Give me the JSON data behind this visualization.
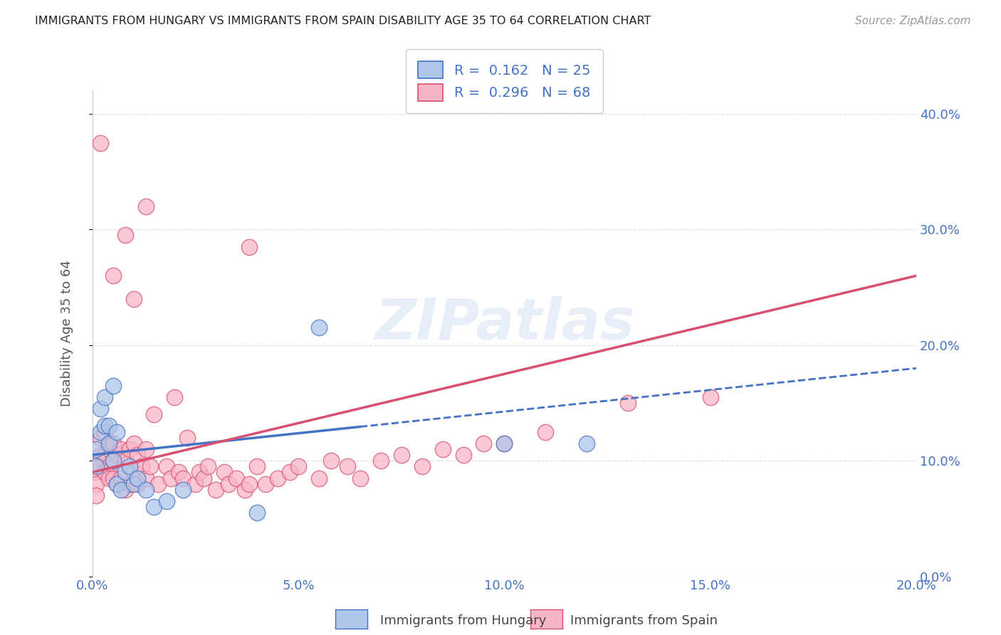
{
  "title": "IMMIGRANTS FROM HUNGARY VS IMMIGRANTS FROM SPAIN DISABILITY AGE 35 TO 64 CORRELATION CHART",
  "source": "Source: ZipAtlas.com",
  "ylabel": "Disability Age 35 to 64",
  "legend_label1": "Immigrants from Hungary",
  "legend_label2": "Immigrants from Spain",
  "r1": 0.162,
  "n1": 25,
  "r2": 0.296,
  "n2": 68,
  "xlim": [
    0.0,
    0.2
  ],
  "ylim": [
    0.0,
    0.42
  ],
  "xticks": [
    0.0,
    0.05,
    0.1,
    0.15,
    0.2
  ],
  "yticks": [
    0.0,
    0.1,
    0.2,
    0.3,
    0.4
  ],
  "color_hungary": "#aec6e8",
  "color_spain": "#f7b6c8",
  "trendline_hungary": "#4472c4",
  "trendline_spain": "#d94f70",
  "hungary_x": [
    0.001,
    0.001,
    0.002,
    0.002,
    0.003,
    0.003,
    0.004,
    0.004,
    0.005,
    0.005,
    0.006,
    0.006,
    0.007,
    0.008,
    0.009,
    0.01,
    0.011,
    0.013,
    0.015,
    0.018,
    0.022,
    0.04,
    0.055,
    0.1,
    0.12
  ],
  "hungary_y": [
    0.11,
    0.095,
    0.145,
    0.125,
    0.155,
    0.13,
    0.13,
    0.115,
    0.1,
    0.165,
    0.125,
    0.08,
    0.075,
    0.09,
    0.095,
    0.08,
    0.085,
    0.075,
    0.06,
    0.065,
    0.075,
    0.055,
    0.215,
    0.115,
    0.115
  ],
  "spain_x": [
    0.001,
    0.001,
    0.001,
    0.002,
    0.002,
    0.002,
    0.003,
    0.003,
    0.003,
    0.004,
    0.004,
    0.004,
    0.005,
    0.005,
    0.005,
    0.006,
    0.006,
    0.007,
    0.007,
    0.008,
    0.008,
    0.009,
    0.009,
    0.01,
    0.01,
    0.011,
    0.011,
    0.012,
    0.013,
    0.013,
    0.014,
    0.015,
    0.016,
    0.018,
    0.019,
    0.02,
    0.021,
    0.022,
    0.023,
    0.025,
    0.026,
    0.027,
    0.028,
    0.03,
    0.032,
    0.033,
    0.035,
    0.037,
    0.038,
    0.04,
    0.042,
    0.045,
    0.048,
    0.05,
    0.055,
    0.058,
    0.062,
    0.065,
    0.07,
    0.075,
    0.08,
    0.085,
    0.09,
    0.095,
    0.1,
    0.11,
    0.13,
    0.15
  ],
  "spain_y": [
    0.09,
    0.08,
    0.07,
    0.12,
    0.105,
    0.095,
    0.125,
    0.105,
    0.09,
    0.11,
    0.095,
    0.085,
    0.115,
    0.1,
    0.085,
    0.105,
    0.08,
    0.11,
    0.085,
    0.1,
    0.075,
    0.11,
    0.08,
    0.115,
    0.09,
    0.105,
    0.08,
    0.095,
    0.11,
    0.085,
    0.095,
    0.14,
    0.08,
    0.095,
    0.085,
    0.155,
    0.09,
    0.085,
    0.12,
    0.08,
    0.09,
    0.085,
    0.095,
    0.075,
    0.09,
    0.08,
    0.085,
    0.075,
    0.08,
    0.095,
    0.08,
    0.085,
    0.09,
    0.095,
    0.085,
    0.1,
    0.095,
    0.085,
    0.1,
    0.105,
    0.095,
    0.11,
    0.105,
    0.115,
    0.115,
    0.125,
    0.15,
    0.155
  ],
  "spain_outliers_x": [
    0.002,
    0.005,
    0.008,
    0.01,
    0.013,
    0.038
  ],
  "spain_outliers_y": [
    0.375,
    0.26,
    0.295,
    0.24,
    0.32,
    0.285
  ],
  "watermark": "ZIPatlas",
  "background_color": "#ffffff",
  "grid_color": "#dddddd"
}
